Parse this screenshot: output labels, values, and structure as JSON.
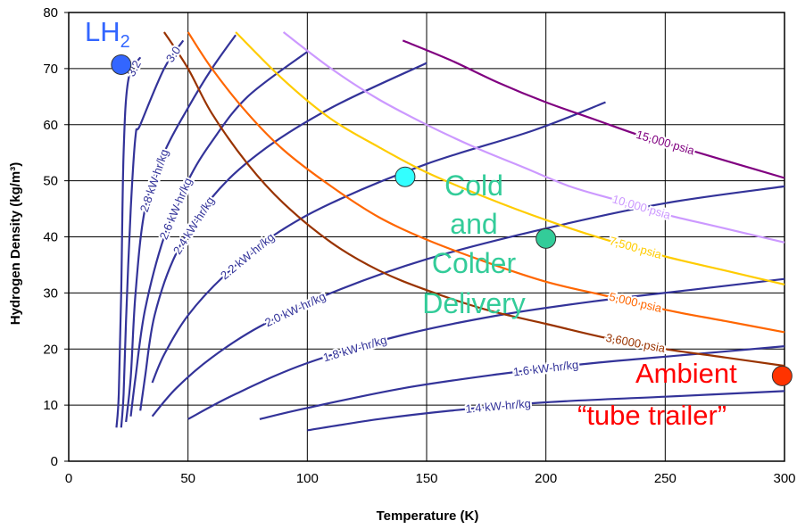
{
  "chart_data": {
    "type": "line",
    "xlabel": "Temperature (K)",
    "ylabel": "Hydrogen Density (kg/m³)",
    "xlim": [
      0,
      300
    ],
    "ylim": [
      0,
      80
    ],
    "x_ticks": [
      "0",
      "50",
      "100",
      "150",
      "200",
      "250",
      "300"
    ],
    "y_ticks": [
      "0",
      "10",
      "20",
      "30",
      "40",
      "50",
      "60",
      "70",
      "80"
    ],
    "grid": true,
    "energy_series": [
      {
        "name": "3.2",
        "color": "#333399",
        "x": [
          20,
          21,
          22,
          23,
          25,
          30
        ],
        "y": [
          6,
          12,
          30,
          55,
          68,
          72
        ]
      },
      {
        "name": "3.0",
        "color": "#333399",
        "x": [
          22,
          23,
          24,
          26,
          28,
          30,
          40,
          48
        ],
        "y": [
          6,
          12,
          25,
          45,
          58,
          60,
          70,
          75
        ]
      },
      {
        "name": "2.8 kW-hr/kg",
        "color": "#333399",
        "x": [
          24,
          26,
          28,
          32,
          40,
          50,
          60,
          70
        ],
        "y": [
          7,
          15,
          30,
          45,
          55,
          63,
          70,
          76
        ]
      },
      {
        "name": "2.6 kW-hr/kg",
        "color": "#333399",
        "x": [
          26,
          28,
          32,
          40,
          50,
          60,
          75,
          100
        ],
        "y": [
          8,
          15,
          27,
          40,
          50,
          57,
          65,
          73
        ]
      },
      {
        "name": "2.4 kW-hr/kg",
        "color": "#333399",
        "x": [
          30,
          32,
          36,
          45,
          60,
          80,
          110,
          150
        ],
        "y": [
          9,
          15,
          26,
          37,
          47,
          55,
          63,
          71
        ]
      },
      {
        "name": "2.2 kW-hr/kg",
        "color": "#333399",
        "x": [
          35,
          40,
          50,
          65,
          85,
          110,
          150,
          195,
          225
        ],
        "y": [
          14,
          19,
          26,
          33,
          40,
          46,
          53,
          59,
          64
        ]
      },
      {
        "name": "2.0 kW-hr/kg",
        "color": "#333399",
        "x": [
          35,
          45,
          60,
          80,
          110,
          150,
          200,
          250,
          300
        ],
        "y": [
          8,
          13,
          18.5,
          24,
          30,
          36,
          41.5,
          46,
          49
        ]
      },
      {
        "name": "1.8 kW-hr/kg",
        "color": "#333399",
        "x": [
          50,
          70,
          100,
          140,
          180,
          220,
          260,
          300
        ],
        "y": [
          7.5,
          12,
          17.5,
          22.5,
          26,
          28.5,
          30.5,
          32.5
        ]
      },
      {
        "name": "1.6 kW-hr/kg",
        "color": "#333399",
        "x": [
          80,
          100,
          140,
          180,
          220,
          260,
          300
        ],
        "y": [
          7.5,
          9.5,
          13,
          15.5,
          17.5,
          19,
          20.5
        ]
      },
      {
        "name": "1.4 kW-hr/kg",
        "color": "#333399",
        "x": [
          100,
          130,
          160,
          200,
          250,
          300
        ],
        "y": [
          5.5,
          7.5,
          9,
          10.5,
          11.5,
          12.5
        ]
      }
    ],
    "pressure_series": [
      {
        "name": "15,000 psia",
        "color": "#800080",
        "x": [
          140,
          160,
          180,
          200,
          220,
          240,
          260,
          280,
          300
        ],
        "y": [
          75,
          71.5,
          67.5,
          64,
          61,
          58,
          55.5,
          53,
          50.5
        ]
      },
      {
        "name": "10,000 psia",
        "color": "#cc99ff",
        "x": [
          90,
          110,
          130,
          150,
          170,
          190,
          210,
          230,
          250,
          270,
          300
        ],
        "y": [
          76.5,
          70,
          64.5,
          60,
          56,
          52.5,
          49,
          46.5,
          44,
          42,
          39
        ]
      },
      {
        "name": "7,500 psia",
        "color": "#ffcc00",
        "x": [
          70,
          90,
          110,
          130,
          150,
          175,
          200,
          225,
          250,
          275,
          300
        ],
        "y": [
          76.5,
          68,
          61,
          56,
          51.5,
          47,
          43,
          39.5,
          36.5,
          34,
          31.5
        ]
      },
      {
        "name": "5,000 psia",
        "color": "#ff6600",
        "x": [
          50,
          60,
          75,
          90,
          110,
          130,
          150,
          175,
          200,
          225,
          250,
          275,
          300
        ],
        "y": [
          76.5,
          70,
          62,
          55.5,
          49,
          43.5,
          39.5,
          35.5,
          32,
          29.5,
          27,
          25,
          23
        ]
      },
      {
        "name": "3,6000 psia",
        "color": "#993300",
        "x": [
          40,
          50,
          60,
          75,
          90,
          110,
          130,
          150,
          175,
          200,
          225,
          250,
          275,
          300
        ],
        "y": [
          76.5,
          70,
          62,
          53,
          46,
          39,
          34,
          30.5,
          27,
          24.5,
          22,
          20,
          18.5,
          17
        ]
      }
    ],
    "points": [
      {
        "name": "LH2",
        "x": 22,
        "y": 70.7,
        "color": "#3366ff"
      },
      {
        "name": "Cold and Colder Delivery (cold)",
        "x": 141,
        "y": 50.7,
        "color": "#33ffff"
      },
      {
        "name": "Cold and Colder Delivery (colder)",
        "x": 200,
        "y": 39.7,
        "color": "#33cc99"
      },
      {
        "name": "Ambient tube trailer",
        "x": 299,
        "y": 15.2,
        "color": "#ff3300"
      }
    ],
    "annotations": {
      "lh2": "LH",
      "lh2_sub": "2",
      "cold_lines": [
        "Cold",
        "and",
        "Colder",
        "Delivery"
      ],
      "ambient_line1": "Ambient",
      "ambient_line2": "“tube trailer”"
    }
  }
}
